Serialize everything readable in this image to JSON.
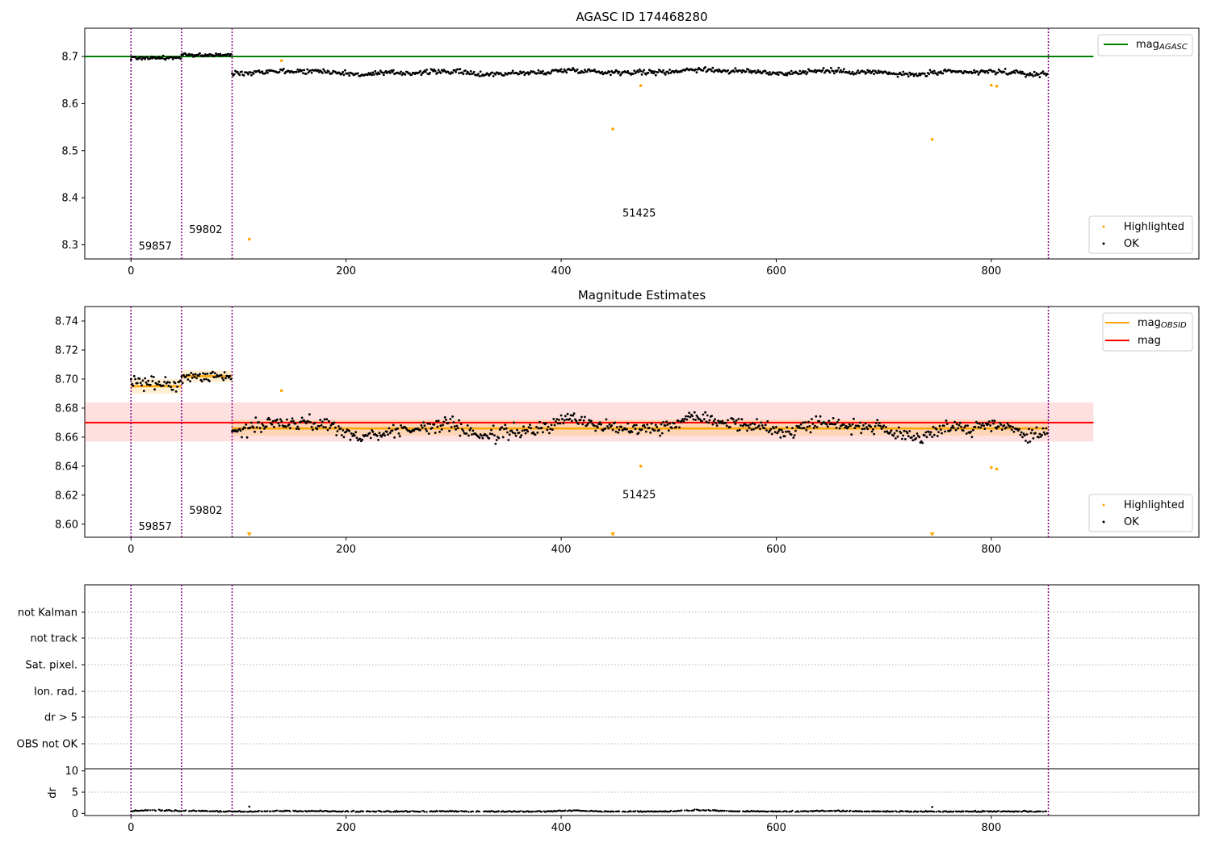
{
  "chart_data": [
    {
      "type": "scatter",
      "title": "AGASC ID 174468280",
      "xlabel": "",
      "ylabel": "",
      "xlim": [
        -43,
        993
      ],
      "ylim": [
        8.27,
        8.76
      ],
      "xticks": [
        0,
        200,
        400,
        600,
        800
      ],
      "yticks": [
        8.3,
        8.4,
        8.5,
        8.6,
        8.7
      ],
      "ytick_labels": [
        "8.3",
        "8.4",
        "8.5",
        "8.6",
        "8.7"
      ],
      "grid": false,
      "colors": {
        "ok": "#000000",
        "highlighted": "#ffa500",
        "mag_agasc": "#008000",
        "obsid_boundary": "#800080"
      },
      "obsid_boundaries": [
        0,
        47,
        94,
        853
      ],
      "obsid_labels": [
        {
          "text": "59857",
          "x": 7,
          "y": 8.29
        },
        {
          "text": "59802",
          "x": 54,
          "y": 8.325
        },
        {
          "text": "51425",
          "x": 457,
          "y": 8.36
        }
      ],
      "mag_agasc": {
        "value": 8.7,
        "x_range": [
          -43,
          895
        ],
        "name": "mag_AGASC"
      },
      "segments": [
        {
          "x_start": 0,
          "x_end": 47,
          "level": 8.697,
          "spread": 0.006
        },
        {
          "x_start": 47,
          "x_end": 94,
          "level": 8.703,
          "spread": 0.005
        },
        {
          "x_start": 94,
          "x_end": 853,
          "level": 8.667,
          "spread": 0.008
        }
      ],
      "highlighted_points": [
        [
          110,
          8.312
        ],
        [
          140,
          8.691
        ],
        [
          448,
          8.546
        ],
        [
          474,
          8.638
        ],
        [
          745,
          8.524
        ],
        [
          800,
          8.639
        ],
        [
          805,
          8.637
        ]
      ],
      "legend": {
        "lines_position": "upper right",
        "points_position": "lower right",
        "entries": [
          "mag",
          "Highlighted",
          "OK"
        ]
      }
    },
    {
      "type": "scatter",
      "title": "Magnitude Estimates",
      "xlabel": "",
      "ylabel": "",
      "xlim": [
        -43,
        993
      ],
      "ylim": [
        8.591,
        8.75
      ],
      "xticks": [
        0,
        200,
        400,
        600,
        800
      ],
      "yticks": [
        8.6,
        8.62,
        8.64,
        8.66,
        8.68,
        8.7,
        8.72,
        8.74
      ],
      "ytick_labels": [
        "8.60",
        "8.62",
        "8.64",
        "8.66",
        "8.68",
        "8.70",
        "8.72",
        "8.74"
      ],
      "grid": false,
      "mag": {
        "value": 8.67,
        "band": [
          8.657,
          8.684
        ],
        "x_range": [
          -43,
          895
        ],
        "name": "mag",
        "color": "#ff0000"
      },
      "mag_obsid": [
        {
          "x_start": 0,
          "x_end": 47,
          "value": 8.695,
          "band": [
            8.69,
            8.7
          ]
        },
        {
          "x_start": 47,
          "x_end": 94,
          "value": 8.702,
          "band": [
            8.698,
            8.706
          ]
        },
        {
          "x_start": 94,
          "x_end": 853,
          "value": 8.666,
          "band": [
            8.661,
            8.672
          ]
        }
      ],
      "mag_obsid_name": "mag_OBSID",
      "obsid_boundaries": [
        0,
        47,
        94,
        853
      ],
      "obsid_labels": [
        {
          "text": "59857",
          "x": 7,
          "y": 8.596
        },
        {
          "text": "59802",
          "x": 54,
          "y": 8.607
        },
        {
          "text": "51425",
          "x": 457,
          "y": 8.618
        }
      ],
      "highlighted_points": [
        [
          140,
          8.692
        ],
        [
          474,
          8.64
        ],
        [
          800,
          8.639
        ],
        [
          805,
          8.638
        ]
      ],
      "off_scale_low_markers": [
        110,
        448,
        745
      ],
      "legend": {
        "lines_position": "upper right",
        "points_position": "lower right",
        "entries": [
          "mag",
          "mag",
          "Highlighted",
          "OK"
        ]
      }
    },
    {
      "type": "scatter",
      "title": "",
      "xlabel": "",
      "ylabel": "",
      "xlim": [
        -43,
        993
      ],
      "flag_rows": [
        "not Kalman",
        "not track",
        "Sat. pixel.",
        "Ion. rad.",
        "dr > 5",
        "OBS not OK"
      ],
      "obsid_boundaries": [
        0,
        47,
        94,
        853
      ],
      "grid": "horizontal dotted"
    },
    {
      "type": "scatter",
      "title": "",
      "xlabel": "",
      "ylabel": "dr",
      "xlim": [
        -43,
        993
      ],
      "ylim": [
        -0.5,
        10.5
      ],
      "xticks": [
        0,
        200,
        400,
        600,
        800
      ],
      "yticks": [
        0,
        5,
        10
      ],
      "ytick_labels": [
        "0",
        "5",
        "10"
      ],
      "obsid_boundaries": [
        0,
        47,
        94,
        853
      ],
      "dr_baseline": 0.35,
      "dr_spikes": [
        [
          110,
          1.6
        ],
        [
          745,
          1.5
        ]
      ]
    }
  ],
  "labels": {
    "title_top": "AGASC ID 174468280",
    "title_mid": "Magnitude Estimates",
    "legend_mag_agasc": "mag",
    "legend_mag_agasc_sub": "AGASC",
    "legend_mag_obsid": "mag",
    "legend_mag_obsid_sub": "OBSID",
    "legend_mag": "mag",
    "legend_highlighted": "Highlighted",
    "legend_ok": "OK",
    "dr_ylabel": "dr"
  }
}
